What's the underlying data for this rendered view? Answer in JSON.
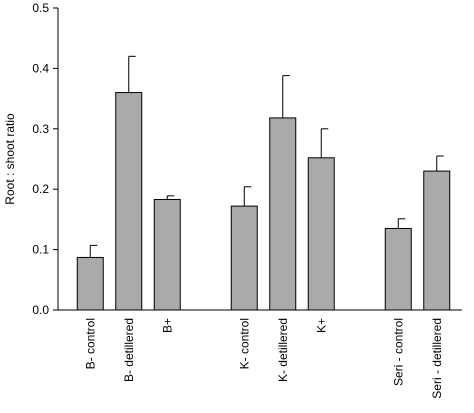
{
  "chart_data": {
    "type": "bar",
    "y_label": "Root : shoot ratio",
    "categories": [
      "B- control",
      "B- detillered",
      "B+",
      null,
      "K- control",
      "K- detillered",
      "K+",
      null,
      "Seri - control",
      "Seri - detillered"
    ],
    "values": [
      0.087,
      0.36,
      0.183,
      null,
      0.172,
      0.318,
      0.252,
      null,
      0.135,
      0.23
    ],
    "errors": [
      0.02,
      0.06,
      0.006,
      null,
      0.032,
      0.07,
      0.048,
      null,
      0.016,
      0.025
    ],
    "color": "#aaaaaa",
    "ylim": [
      0,
      0.5
    ],
    "yticks": [
      {
        "value": 0,
        "label": "0.0"
      },
      0.1,
      0.2,
      0.3,
      0.4,
      0.5
    ],
    "grid": false
  }
}
